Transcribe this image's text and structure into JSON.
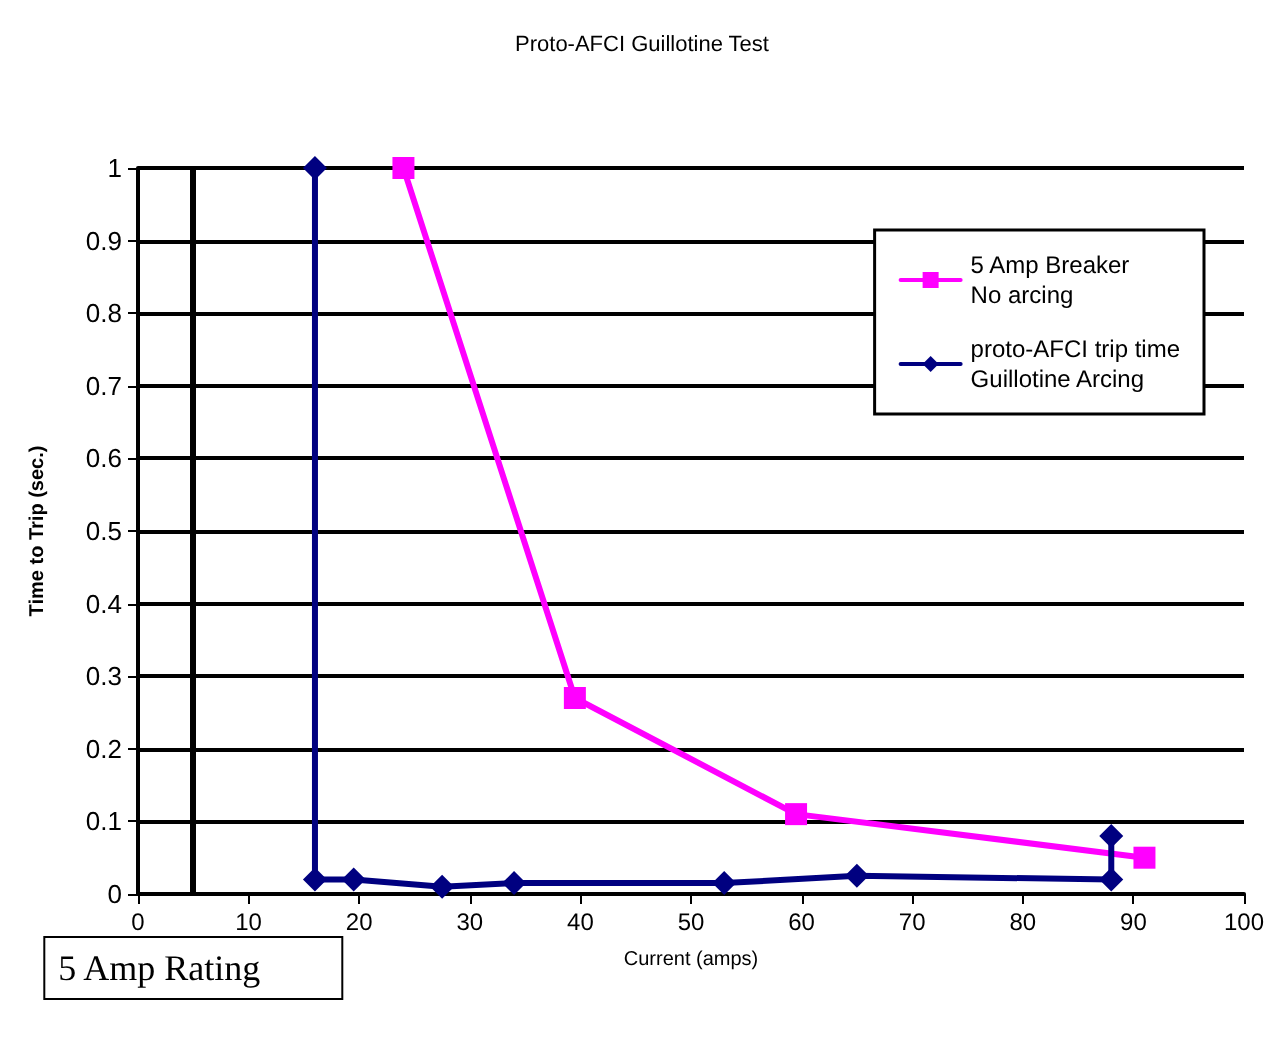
{
  "chart_data": {
    "type": "line",
    "title": "Proto-AFCI Guillotine Test",
    "xlabel": "Current (amps)",
    "ylabel": "Time to Trip (sec.)",
    "series": [
      {
        "name": "5 Amp Breaker\nNo arcing",
        "color": "#ff00ff",
        "marker": "square",
        "x": [
          24,
          39.5,
          59.5,
          91
        ],
        "values": [
          1,
          0.27,
          0.11,
          0.05
        ]
      },
      {
        "name": "proto-AFCI trip time\nGuillotine Arcing",
        "color": "#000080",
        "marker": "diamond",
        "x": [
          16,
          16,
          19.5,
          27.5,
          34,
          53,
          65,
          88,
          88
        ],
        "values": [
          1,
          0.02,
          0.02,
          0.01,
          0.015,
          0.015,
          0.025,
          0.02,
          0.08
        ]
      }
    ],
    "xlim": [
      0,
      100
    ],
    "xticks": [
      0,
      10,
      20,
      30,
      40,
      50,
      60,
      70,
      80,
      90,
      100
    ],
    "ylim": [
      0,
      1
    ],
    "yticks": [
      0,
      0.1,
      0.2,
      0.3,
      0.4,
      0.5,
      0.6,
      0.7,
      0.8,
      0.9,
      1
    ],
    "ref_lines": [
      {
        "axis": "x",
        "value": 5,
        "label": "5 Amp Rating",
        "color": "#000000"
      }
    ],
    "grid": "y",
    "legend": "top right"
  }
}
